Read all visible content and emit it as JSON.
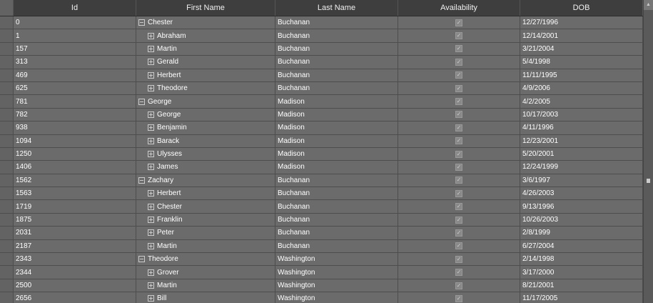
{
  "columns": [
    "Id",
    "First Name",
    "Last Name",
    "Availability",
    "DOB"
  ],
  "rows": [
    {
      "id": "0",
      "first": "Chester",
      "last": "Buchanan",
      "available": true,
      "dob": "12/27/1996",
      "level": 0
    },
    {
      "id": "1",
      "first": "Abraham",
      "last": "Buchanan",
      "available": true,
      "dob": "12/14/2001",
      "level": 1
    },
    {
      "id": "157",
      "first": "Martin",
      "last": "Buchanan",
      "available": true,
      "dob": "3/21/2004",
      "level": 1
    },
    {
      "id": "313",
      "first": "Gerald",
      "last": "Buchanan",
      "available": true,
      "dob": "5/4/1998",
      "level": 1
    },
    {
      "id": "469",
      "first": "Herbert",
      "last": "Buchanan",
      "available": true,
      "dob": "11/11/1995",
      "level": 1
    },
    {
      "id": "625",
      "first": "Theodore",
      "last": "Buchanan",
      "available": true,
      "dob": "4/9/2006",
      "level": 1
    },
    {
      "id": "781",
      "first": "George",
      "last": "Madison",
      "available": true,
      "dob": "4/2/2005",
      "level": 0
    },
    {
      "id": "782",
      "first": "George",
      "last": "Madison",
      "available": true,
      "dob": "10/17/2003",
      "level": 1
    },
    {
      "id": "938",
      "first": "Benjamin",
      "last": "Madison",
      "available": true,
      "dob": "4/11/1996",
      "level": 1
    },
    {
      "id": "1094",
      "first": "Barack",
      "last": "Madison",
      "available": true,
      "dob": "12/23/2001",
      "level": 1
    },
    {
      "id": "1250",
      "first": "Ulysses",
      "last": "Madison",
      "available": true,
      "dob": "5/20/2001",
      "level": 1
    },
    {
      "id": "1406",
      "first": "James",
      "last": "Madison",
      "available": true,
      "dob": "12/24/1999",
      "level": 1
    },
    {
      "id": "1562",
      "first": "Zachary",
      "last": "Buchanan",
      "available": true,
      "dob": "3/6/1997",
      "level": 0
    },
    {
      "id": "1563",
      "first": "Herbert",
      "last": "Buchanan",
      "available": true,
      "dob": "4/26/2003",
      "level": 1
    },
    {
      "id": "1719",
      "first": "Chester",
      "last": "Buchanan",
      "available": true,
      "dob": "9/13/1996",
      "level": 1
    },
    {
      "id": "1875",
      "first": "Franklin",
      "last": "Buchanan",
      "available": true,
      "dob": "10/26/2003",
      "level": 1
    },
    {
      "id": "2031",
      "first": "Peter",
      "last": "Buchanan",
      "available": true,
      "dob": "2/8/1999",
      "level": 1
    },
    {
      "id": "2187",
      "first": "Martin",
      "last": "Buchanan",
      "available": true,
      "dob": "6/27/2004",
      "level": 1
    },
    {
      "id": "2343",
      "first": "Theodore",
      "last": "Washington",
      "available": true,
      "dob": "2/14/1998",
      "level": 0
    },
    {
      "id": "2344",
      "first": "Grover",
      "last": "Washington",
      "available": true,
      "dob": "3/17/2000",
      "level": 1
    },
    {
      "id": "2500",
      "first": "Martin",
      "last": "Washington",
      "available": true,
      "dob": "8/21/2001",
      "level": 1
    },
    {
      "id": "2656",
      "first": "Bill",
      "last": "Washington",
      "available": true,
      "dob": "11/17/2005",
      "level": 1
    }
  ]
}
